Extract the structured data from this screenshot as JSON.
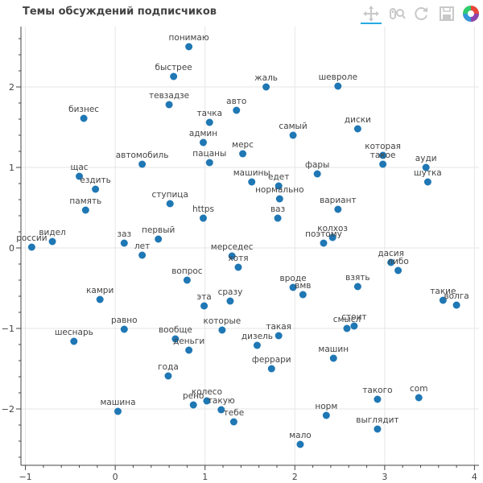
{
  "title": "Темы обсуждений подписчиков",
  "toolbar": {
    "icons": [
      "pan-icon",
      "wheel-zoom-icon",
      "reset-icon",
      "save-icon",
      "bokeh-logo-icon"
    ],
    "active": "pan-icon"
  },
  "chart_data": {
    "type": "scatter",
    "title": "Темы обсуждений подписчиков",
    "xlabel": "",
    "ylabel": "",
    "xlim": [
      -1.05,
      4.05
    ],
    "ylim": [
      -2.7,
      2.75
    ],
    "xticks": [
      -1,
      0,
      1,
      2,
      3,
      4
    ],
    "yticks": [
      -2,
      -1,
      0,
      1,
      2
    ],
    "xtick_labels": [
      "−1",
      "0",
      "1",
      "2",
      "3",
      "4"
    ],
    "ytick_labels": [
      "−2",
      "−1",
      "0",
      "1",
      "2"
    ],
    "grid": true,
    "marker_color": "#1f77b4",
    "points": [
      {
        "x": 0.82,
        "y": 2.5,
        "label": "понимаю"
      },
      {
        "x": 0.65,
        "y": 2.13,
        "label": "быстрее"
      },
      {
        "x": 1.68,
        "y": 2.0,
        "label": "жаль"
      },
      {
        "x": 2.48,
        "y": 2.01,
        "label": "шевроле"
      },
      {
        "x": -0.35,
        "y": 1.61,
        "label": "бизнес"
      },
      {
        "x": 0.6,
        "y": 1.78,
        "label": "тевзадзе"
      },
      {
        "x": 1.35,
        "y": 1.71,
        "label": "авто"
      },
      {
        "x": 1.05,
        "y": 1.56,
        "label": "тачка"
      },
      {
        "x": 2.7,
        "y": 1.48,
        "label": "диски"
      },
      {
        "x": 1.98,
        "y": 1.4,
        "label": "самый"
      },
      {
        "x": 0.98,
        "y": 1.31,
        "label": "админ"
      },
      {
        "x": 1.42,
        "y": 1.17,
        "label": "мерс"
      },
      {
        "x": 2.98,
        "y": 1.15,
        "label": "которая"
      },
      {
        "x": 2.98,
        "y": 1.04,
        "label": "такое"
      },
      {
        "x": 0.3,
        "y": 1.04,
        "label": "автомобиль"
      },
      {
        "x": 1.05,
        "y": 1.06,
        "label": "пацаны"
      },
      {
        "x": 3.46,
        "y": 1.0,
        "label": "ауди"
      },
      {
        "x": -0.4,
        "y": 0.89,
        "label": "щас"
      },
      {
        "x": -0.22,
        "y": 0.73,
        "label": "ездить"
      },
      {
        "x": 2.25,
        "y": 0.92,
        "label": "фары"
      },
      {
        "x": 3.48,
        "y": 0.82,
        "label": "шутка"
      },
      {
        "x": 1.52,
        "y": 0.82,
        "label": "машины"
      },
      {
        "x": 1.82,
        "y": 0.77,
        "label": "едет"
      },
      {
        "x": 1.83,
        "y": 0.61,
        "label": "нормально"
      },
      {
        "x": 0.61,
        "y": 0.55,
        "label": "ступица"
      },
      {
        "x": -0.33,
        "y": 0.47,
        "label": "память"
      },
      {
        "x": 2.48,
        "y": 0.48,
        "label": "вариант"
      },
      {
        "x": 0.98,
        "y": 0.37,
        "label": "https"
      },
      {
        "x": 1.81,
        "y": 0.37,
        "label": "ваз"
      },
      {
        "x": -0.93,
        "y": 0.01,
        "label": "россии"
      },
      {
        "x": -0.7,
        "y": 0.08,
        "label": "видел"
      },
      {
        "x": 0.1,
        "y": 0.06,
        "label": "заз"
      },
      {
        "x": 0.48,
        "y": 0.11,
        "label": "первый"
      },
      {
        "x": 2.42,
        "y": 0.13,
        "label": "колхоз"
      },
      {
        "x": 2.32,
        "y": 0.06,
        "label": "поэтому"
      },
      {
        "x": 0.3,
        "y": -0.09,
        "label": "лет"
      },
      {
        "x": 1.3,
        "y": -0.1,
        "label": "мерседес"
      },
      {
        "x": 1.37,
        "y": -0.24,
        "label": "хотя"
      },
      {
        "x": 3.07,
        "y": -0.18,
        "label": "дасия"
      },
      {
        "x": 3.15,
        "y": -0.28,
        "label": "либо"
      },
      {
        "x": 0.8,
        "y": -0.4,
        "label": "вопрос"
      },
      {
        "x": 1.98,
        "y": -0.49,
        "label": "вроде"
      },
      {
        "x": 2.09,
        "y": -0.58,
        "label": "вмв"
      },
      {
        "x": 2.7,
        "y": -0.48,
        "label": "взять"
      },
      {
        "x": -0.17,
        "y": -0.64,
        "label": "камри"
      },
      {
        "x": 1.28,
        "y": -0.66,
        "label": "сразу"
      },
      {
        "x": 0.99,
        "y": -0.72,
        "label": "эта"
      },
      {
        "x": 3.65,
        "y": -0.65,
        "label": "такие"
      },
      {
        "x": 3.8,
        "y": -0.71,
        "label": "волга"
      },
      {
        "x": 0.1,
        "y": -1.01,
        "label": "равно"
      },
      {
        "x": 1.19,
        "y": -1.02,
        "label": "которые"
      },
      {
        "x": 1.82,
        "y": -1.09,
        "label": "такая"
      },
      {
        "x": 2.58,
        "y": -1.0,
        "label": "смысл"
      },
      {
        "x": 2.66,
        "y": -0.97,
        "label": "стоит"
      },
      {
        "x": -0.46,
        "y": -1.16,
        "label": "шеснарь"
      },
      {
        "x": 0.67,
        "y": -1.13,
        "label": "вообще"
      },
      {
        "x": 1.58,
        "y": -1.21,
        "label": "дизель"
      },
      {
        "x": 0.82,
        "y": -1.27,
        "label": "деньги"
      },
      {
        "x": 2.43,
        "y": -1.37,
        "label": "машин"
      },
      {
        "x": 1.74,
        "y": -1.5,
        "label": "феррари"
      },
      {
        "x": 0.59,
        "y": -1.59,
        "label": "года"
      },
      {
        "x": 2.92,
        "y": -1.88,
        "label": "такого"
      },
      {
        "x": 3.38,
        "y": -1.86,
        "label": "com"
      },
      {
        "x": 0.87,
        "y": -1.95,
        "label": "рено"
      },
      {
        "x": 1.02,
        "y": -1.9,
        "label": "колесо"
      },
      {
        "x": 1.18,
        "y": -2.01,
        "label": "такую"
      },
      {
        "x": 0.03,
        "y": -2.03,
        "label": "машина"
      },
      {
        "x": 2.35,
        "y": -2.08,
        "label": "норм"
      },
      {
        "x": 1.32,
        "y": -2.16,
        "label": "тебе"
      },
      {
        "x": 2.92,
        "y": -2.25,
        "label": "выглядит"
      },
      {
        "x": 2.06,
        "y": -2.44,
        "label": "мало"
      }
    ]
  }
}
